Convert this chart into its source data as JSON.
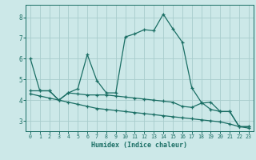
{
  "xlabel": "Humidex (Indice chaleur)",
  "bg_color": "#cce8e8",
  "line_color": "#1a6e64",
  "grid_color": "#a8cccc",
  "xlim": [
    -0.5,
    23.5
  ],
  "ylim": [
    2.5,
    8.6
  ],
  "xticks": [
    0,
    1,
    2,
    3,
    4,
    5,
    6,
    7,
    8,
    9,
    10,
    11,
    12,
    13,
    14,
    15,
    16,
    17,
    18,
    19,
    20,
    21,
    22,
    23
  ],
  "yticks": [
    3,
    4,
    5,
    6,
    7,
    8
  ],
  "line1_x": [
    0,
    1,
    2,
    3,
    4,
    5,
    6,
    7,
    8,
    9,
    10,
    11,
    12,
    13,
    14,
    15,
    16,
    17,
    18,
    19,
    20,
    21,
    22,
    23
  ],
  "line1_y": [
    6.0,
    4.45,
    4.45,
    4.0,
    4.35,
    4.55,
    6.2,
    4.95,
    4.35,
    4.35,
    7.05,
    7.2,
    7.4,
    7.35,
    8.15,
    7.45,
    6.8,
    4.6,
    3.9,
    3.55,
    3.45,
    3.45,
    2.72,
    2.72
  ],
  "line2_x": [
    0,
    1,
    2,
    3,
    4,
    5,
    6,
    7,
    8,
    9,
    10,
    11,
    12,
    13,
    14,
    15,
    16,
    17,
    18,
    19,
    20,
    21,
    22,
    23
  ],
  "line2_y": [
    4.45,
    4.45,
    4.45,
    4.0,
    4.35,
    4.3,
    4.25,
    4.25,
    4.25,
    4.2,
    4.15,
    4.1,
    4.05,
    4.0,
    3.95,
    3.9,
    3.7,
    3.65,
    3.85,
    3.9,
    3.45,
    3.45,
    2.72,
    2.72
  ],
  "line3_x": [
    0,
    1,
    2,
    3,
    4,
    5,
    6,
    7,
    8,
    9,
    10,
    11,
    12,
    13,
    14,
    15,
    16,
    17,
    18,
    19,
    20,
    21,
    22,
    23
  ],
  "line3_y": [
    4.3,
    4.2,
    4.1,
    4.0,
    3.9,
    3.8,
    3.7,
    3.6,
    3.55,
    3.5,
    3.45,
    3.4,
    3.35,
    3.3,
    3.25,
    3.2,
    3.15,
    3.1,
    3.05,
    3.0,
    2.95,
    2.85,
    2.72,
    2.65
  ]
}
